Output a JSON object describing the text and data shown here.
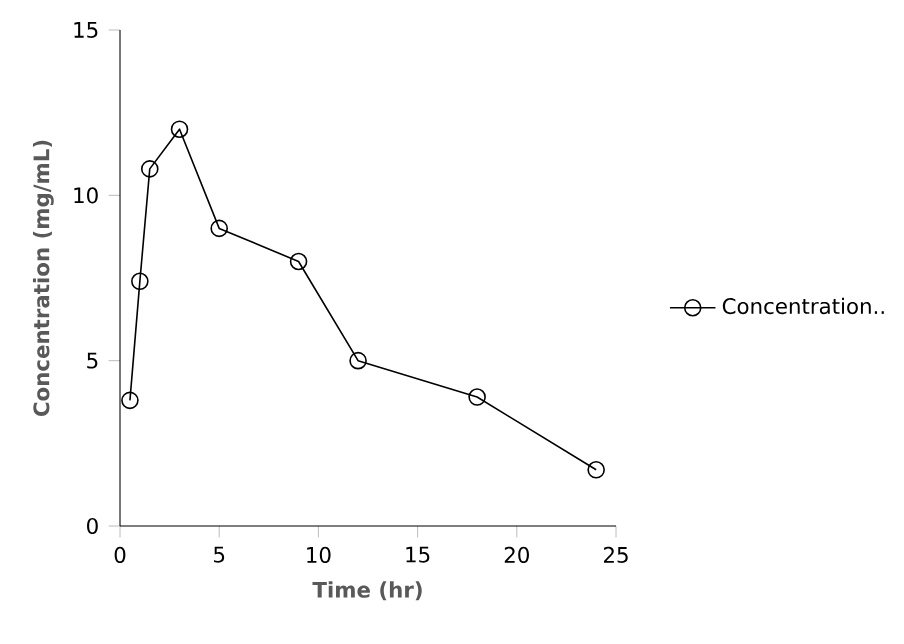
{
  "chart_data": {
    "type": "line",
    "xlabel": "Time (hr)",
    "ylabel": "Concentration (mg/mL)",
    "x": [
      0.5,
      1,
      1.5,
      3,
      5,
      9,
      12,
      18,
      24
    ],
    "series": [
      {
        "name": "Concentration..",
        "color": "#000000",
        "values": [
          3.8,
          7.4,
          10.8,
          12,
          9,
          8,
          5,
          3.9,
          1.7
        ]
      }
    ],
    "xlim": [
      0,
      25
    ],
    "ylim": [
      0,
      15
    ],
    "xticks": [
      0,
      5,
      10,
      15,
      20,
      25
    ],
    "yticks": [
      0,
      5,
      10,
      15
    ],
    "marker": "circle",
    "line_style": "solid",
    "legend": "right",
    "grid": false
  }
}
